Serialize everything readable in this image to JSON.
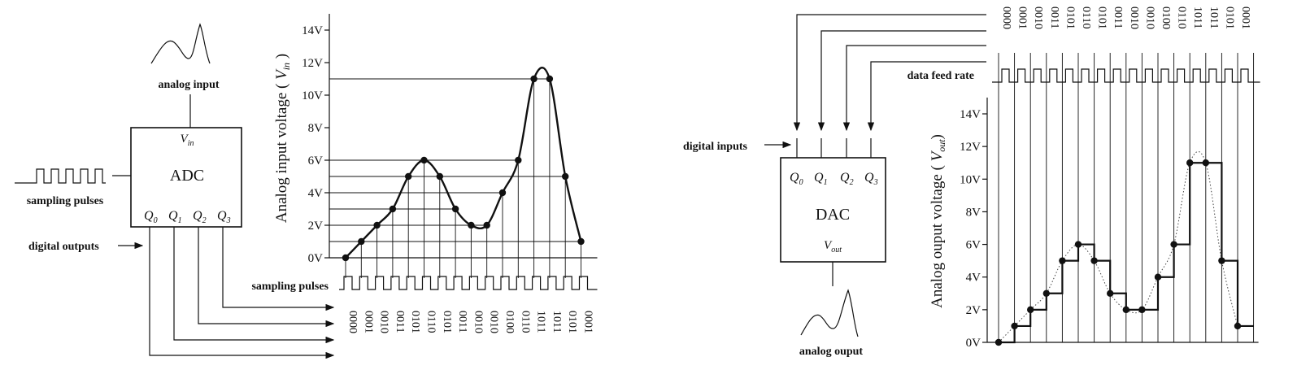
{
  "adc_block": {
    "title": "ADC",
    "vin": "V",
    "vin_sub": "in",
    "outputs": [
      "Q",
      "Q",
      "Q",
      "Q"
    ],
    "output_subs": [
      "0",
      "1",
      "2",
      "3"
    ],
    "analog_input_label": "analog input",
    "sampling_pulses_label": "sampling pulses",
    "digital_outputs_label": "digital outputs"
  },
  "adc_chart": {
    "ylabel_prefix": "Analog input voltage ( ",
    "ylabel_var": "V",
    "ylabel_sub": "in",
    "ylabel_suffix": " )",
    "yticks": [
      "0V",
      "2V",
      "4V",
      "6V",
      "8V",
      "10V",
      "12V",
      "14V"
    ],
    "sampling_label": "sampling pulses",
    "codes": [
      "0000",
      "0001",
      "0010",
      "0011",
      "0101",
      "0110",
      "0101",
      "0011",
      "0010",
      "0010",
      "0100",
      "0110",
      "1011",
      "1011",
      "0101",
      "0001"
    ]
  },
  "dac_block": {
    "title": "DAC",
    "vout": "V",
    "vout_sub": "out",
    "inputs": [
      "Q",
      "Q",
      "Q",
      "Q"
    ],
    "input_subs": [
      "0",
      "1",
      "2",
      "3"
    ],
    "digital_inputs_label": "digital inputs",
    "analog_output_label": "analog ouput",
    "data_feed_label": "data feed rate"
  },
  "dac_chart": {
    "ylabel_prefix": "Analog ouput voltage ( ",
    "ylabel_var": "V",
    "ylabel_sub": "out",
    "ylabel_suffix": ")",
    "yticks": [
      "0V",
      "2V",
      "4V",
      "6V",
      "8V",
      "10V",
      "12V",
      "14V"
    ],
    "codes": [
      "0000",
      "0001",
      "0010",
      "0011",
      "0101",
      "0110",
      "0101",
      "0011",
      "0010",
      "0010",
      "0100",
      "0110",
      "1011",
      "1011",
      "0101",
      "0001"
    ]
  },
  "chart_data": [
    {
      "type": "line",
      "x": [
        1,
        2,
        3,
        4,
        5,
        6,
        7,
        8,
        9,
        10,
        11,
        12,
        13,
        14,
        15,
        16
      ],
      "series": [
        {
          "values": [
            0,
            1,
            2,
            3,
            5,
            6,
            5,
            3,
            2,
            2,
            4,
            6,
            11,
            11,
            5,
            1
          ]
        }
      ],
      "ylim": [
        0,
        14
      ],
      "yticks": [
        "0V",
        "2V",
        "4V",
        "6V",
        "8V",
        "10V",
        "12V",
        "14V"
      ],
      "ylabel": "Analog input voltage ( Vin )"
    },
    {
      "type": "line",
      "x": [
        1,
        2,
        3,
        4,
        5,
        6,
        7,
        8,
        9,
        10,
        11,
        12,
        13,
        14,
        15,
        16
      ],
      "series": [
        {
          "values": [
            0,
            1,
            2,
            3,
            5,
            6,
            5,
            3,
            2,
            2,
            4,
            6,
            11,
            11,
            5,
            1
          ]
        }
      ],
      "ylim": [
        0,
        14
      ],
      "yticks": [
        "0V",
        "2V",
        "4V",
        "6V",
        "8V",
        "10V",
        "12V",
        "14V"
      ],
      "ylabel": "Analog ouput voltage ( Vout)"
    }
  ]
}
